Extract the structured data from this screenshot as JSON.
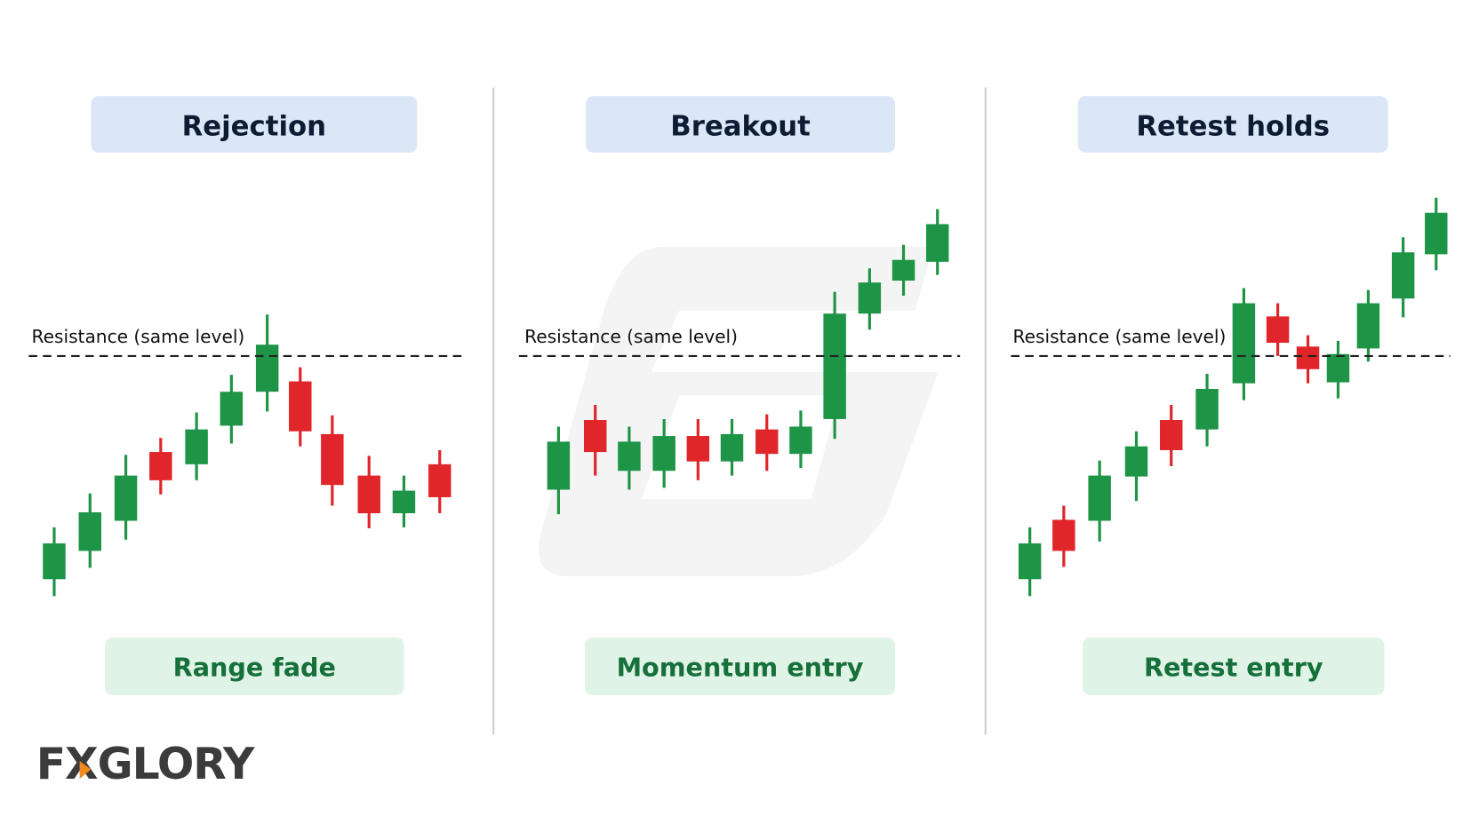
{
  "panels": [
    {
      "title": "Rejection",
      "label": "Resistance (same level)",
      "footer": "Range fade"
    },
    {
      "title": "Breakout",
      "label": "Resistance (same level)",
      "footer": "Momentum entry"
    },
    {
      "title": "Retest holds",
      "label": "Resistance (same level)",
      "footer": "Retest entry"
    }
  ],
  "logo": "FXGLORY"
}
